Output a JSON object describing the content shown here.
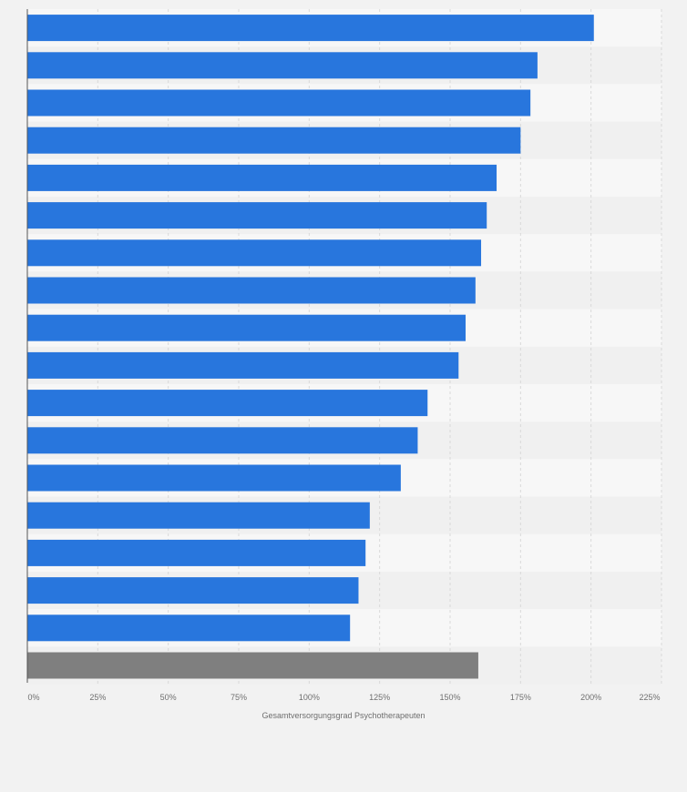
{
  "chart_data": {
    "type": "bar",
    "orientation": "horizontal",
    "xlabel": "Gesamtversorgungsgrad Psychotherapeuten",
    "ylabel": "",
    "xlim": [
      0,
      225
    ],
    "x_ticks": [
      "0%",
      "25%",
      "50%",
      "75%",
      "100%",
      "125%",
      "150%",
      "175%",
      "200%",
      "225%"
    ],
    "categories": [
      "",
      "",
      "",
      "",
      "",
      "",
      "",
      "",
      "",
      "",
      "",
      "",
      "",
      "",
      "",
      "",
      "",
      ""
    ],
    "values": [
      201,
      181,
      178.5,
      175,
      166.5,
      163,
      161,
      159,
      155.5,
      153,
      142,
      138.5,
      132.5,
      121.5,
      120,
      117.5,
      114.5,
      160
    ],
    "bar_colors": [
      "#2876dd",
      "#2876dd",
      "#2876dd",
      "#2876dd",
      "#2876dd",
      "#2876dd",
      "#2876dd",
      "#2876dd",
      "#2876dd",
      "#2876dd",
      "#2876dd",
      "#2876dd",
      "#2876dd",
      "#2876dd",
      "#2876dd",
      "#2876dd",
      "#2876dd",
      "#7f7f7f"
    ],
    "grid": true,
    "legend": "none"
  }
}
